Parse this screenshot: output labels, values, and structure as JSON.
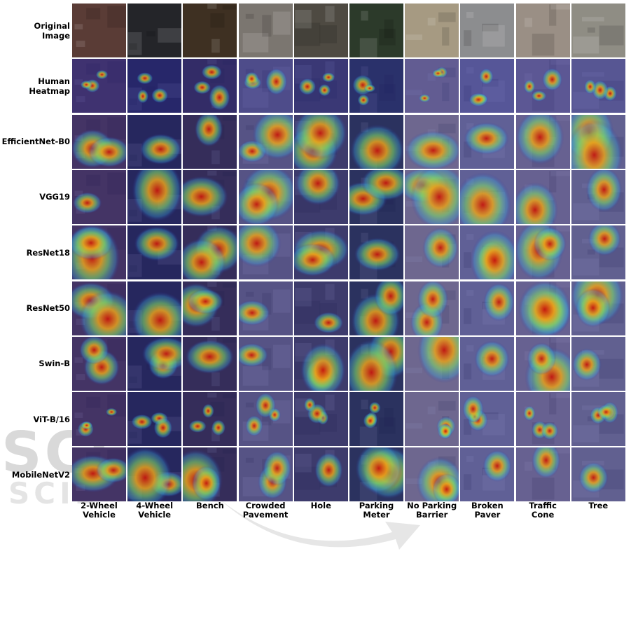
{
  "figure": {
    "row_labels": [
      [
        "Original",
        "Image"
      ],
      [
        "Human",
        "Heatmap"
      ],
      [
        "EfficientNet-B0"
      ],
      [
        "VGG19"
      ],
      [
        "ResNet18"
      ],
      [
        "ResNet50"
      ],
      [
        "Swin-B"
      ],
      [
        "ViT-B/16"
      ],
      [
        "MobileNetV2"
      ]
    ],
    "column_labels": [
      [
        "2-Wheel",
        "Vehicle"
      ],
      [
        "4-Wheel",
        "Vehicle"
      ],
      [
        "Bench"
      ],
      [
        "Crowded",
        "Pavement"
      ],
      [
        "Hole"
      ],
      [
        "Parking",
        "Meter"
      ],
      [
        "No Parking",
        "Barrier"
      ],
      [
        "Broken",
        "Paver"
      ],
      [
        "Traffic",
        "Cone"
      ],
      [
        "Tree"
      ]
    ],
    "base_colors": [
      "#5a3c36",
      "#242529",
      "#3e3022",
      "#7b7670",
      "#4e4a42",
      "#2c3a2a",
      "#a69a82",
      "#8c8d8f",
      "#9a8f85",
      "#8f8d84"
    ],
    "overlay_tint": "#2a2aa0",
    "watermark": {
      "line1": "SCI",
      "line2": "SCIE"
    }
  }
}
